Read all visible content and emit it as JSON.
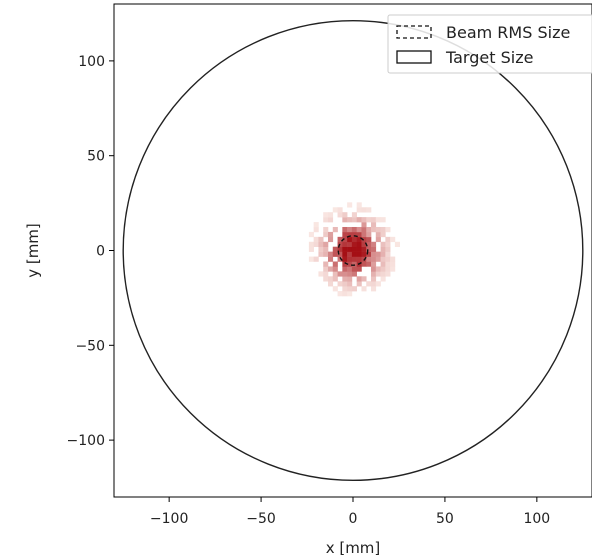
{
  "chart_data": {
    "type": "heatmap",
    "title": "",
    "xlabel": "x [mm]",
    "ylabel": "y [mm]",
    "xlim": [
      -130,
      130
    ],
    "ylim": [
      -130,
      130
    ],
    "xticks": [
      -100,
      -50,
      0,
      50,
      100
    ],
    "yticks": [
      -100,
      -50,
      0,
      50,
      100
    ],
    "xtick_labels": [
      "−100",
      "−50",
      "0",
      "50",
      "100"
    ],
    "ytick_labels": [
      "−100",
      "−50",
      "0",
      "50",
      "100"
    ],
    "grid": false,
    "colormap": "Reds",
    "heatmap": {
      "center": [
        0,
        0
      ],
      "sigma_mm": 9,
      "extent_mm": 24,
      "bin_mm": 2.6
    },
    "target_circle": {
      "center": [
        0,
        0
      ],
      "radius": 125
    },
    "beam_rms_circle": {
      "center": [
        0,
        0
      ],
      "radius": 8
    },
    "legend": {
      "position": "top-right",
      "entries": [
        {
          "label": "Beam RMS Size",
          "style": "dashed"
        },
        {
          "label": "Target Size",
          "style": "solid"
        }
      ]
    },
    "colors": {
      "line": "#222222",
      "frame": "#000000",
      "heat_low": "#fff5f0",
      "heat_high": "#a50f15"
    }
  }
}
